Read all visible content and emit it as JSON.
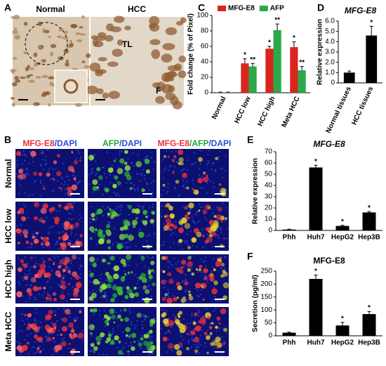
{
  "figure_a": {
    "panel": "A",
    "columns": [
      "Normal",
      "HCC"
    ],
    "annotations": [
      "TL",
      "F"
    ]
  },
  "figure_b": {
    "panel": "B",
    "column_headers": [
      [
        {
          "text": "MFG-E8",
          "color": "#e8303a"
        },
        {
          "text": "/DAPI",
          "color": "#2a4bd8"
        }
      ],
      [
        {
          "text": "AFP",
          "color": "#20a832"
        },
        {
          "text": "/DAPI",
          "color": "#2a4bd8"
        }
      ],
      [
        {
          "text": "MFG-E8",
          "color": "#e8303a"
        },
        {
          "text": "/AFP",
          "color": "#20a832"
        },
        {
          "text": "/DAPI",
          "color": "#2a4bd8"
        }
      ]
    ],
    "row_labels": [
      "Normal",
      "HCC low",
      "HCC high",
      "Meta HCC"
    ]
  },
  "chart_data": [
    {
      "type": "bar",
      "panel": "C",
      "y_label": "Fold change (% of Pixel)",
      "categories": [
        "Normal",
        "HCC low",
        "HCC high",
        "Meta HCC"
      ],
      "series": [
        {
          "name": "MFG-E8",
          "color": "#d7261e",
          "values": [
            0.5,
            38,
            57,
            59
          ],
          "errors": [
            0.3,
            6,
            3,
            7
          ],
          "significance": [
            null,
            "*",
            "*",
            "*"
          ]
        },
        {
          "name": "AFP",
          "color": "#2aa84a",
          "values": [
            0.5,
            34,
            81,
            29
          ],
          "errors": [
            0.3,
            4,
            8,
            5
          ],
          "significance": [
            null,
            "**",
            "**",
            "**"
          ]
        }
      ],
      "ylim": [
        0,
        100
      ],
      "yticks": [
        0,
        20,
        40,
        60,
        80,
        100
      ]
    },
    {
      "type": "bar",
      "panel": "D",
      "title": "MFG-E8",
      "y_label": "Relative expression",
      "categories": [
        "Normal tissues",
        "HCC tissues"
      ],
      "series": [
        {
          "color": "#000000",
          "values": [
            1.0,
            4.6
          ],
          "errors": [
            0.15,
            0.9
          ],
          "significance": [
            null,
            "*"
          ]
        }
      ],
      "ylim": [
        0,
        6
      ],
      "yticks": [
        0,
        {
          "value": 1,
          "label": "1.0"
        },
        {
          "value": 2,
          "label": "2.0"
        },
        {
          "value": 3,
          "label": "3.0"
        },
        {
          "value": 4,
          "label": "4.0"
        },
        {
          "value": 5,
          "label": "5.0"
        },
        {
          "value": 6,
          "label": "6.0"
        }
      ]
    },
    {
      "type": "bar",
      "panel": "E",
      "title": "MFG-E8",
      "y_label": "Relative expression",
      "categories": [
        "Phh",
        "Huh7",
        "HepG2",
        "Hep3B"
      ],
      "series": [
        {
          "color": "#000000",
          "values": [
            0.8,
            56,
            4,
            16
          ],
          "errors": [
            0.3,
            2,
            0.5,
            0.8
          ],
          "significance": [
            null,
            "*",
            "*",
            "*"
          ]
        }
      ],
      "ylim": [
        0,
        70
      ],
      "yticks": [
        0,
        10,
        20,
        30,
        40,
        50,
        60,
        70
      ]
    },
    {
      "type": "bar",
      "panel": "F",
      "title": "MFG-E8",
      "y_label": "Secretion (pg/ml)",
      "categories": [
        "Phh",
        "Huh7",
        "HepG2",
        "Hep3B"
      ],
      "series": [
        {
          "color": "#000000",
          "values": [
            12,
            220,
            40,
            84
          ],
          "errors": [
            2,
            15,
            12,
            10
          ],
          "significance": [
            null,
            "*",
            "*",
            "*"
          ]
        }
      ],
      "ylim": [
        0,
        250
      ],
      "yticks": [
        0,
        50,
        100,
        150,
        200,
        250
      ]
    }
  ]
}
